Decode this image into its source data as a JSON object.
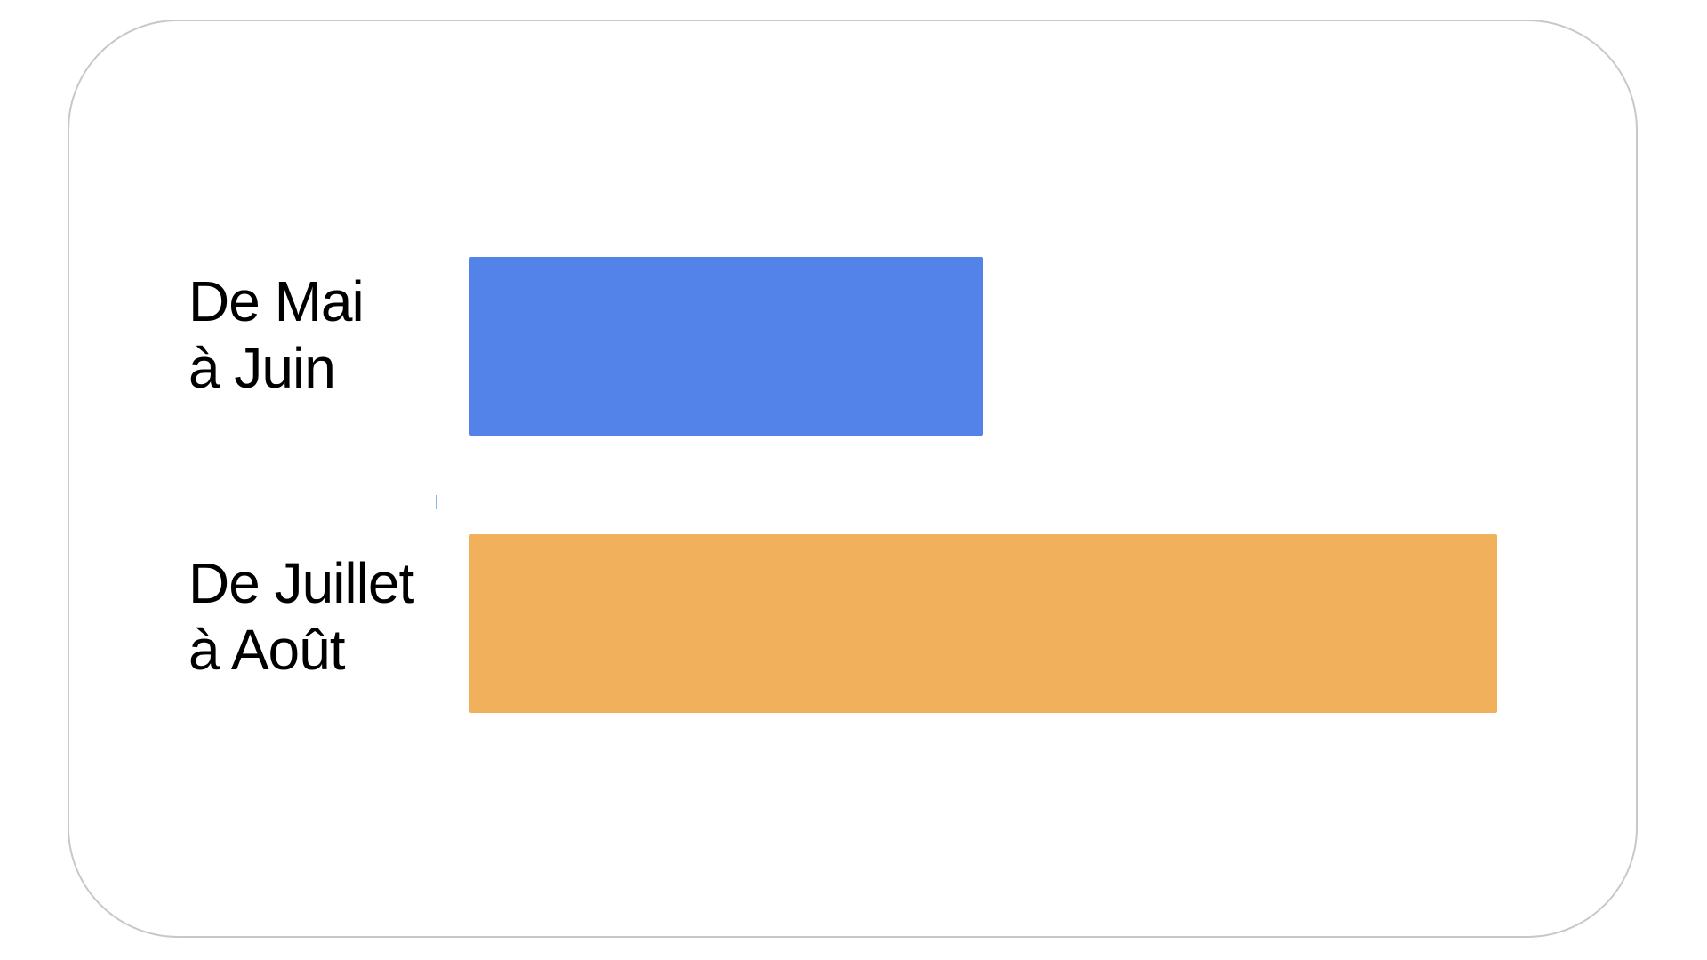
{
  "chart_data": {
    "type": "bar",
    "orientation": "horizontal",
    "categories": [
      [
        "De Mai",
        "à Juin"
      ],
      [
        "De Juillet",
        "à Août"
      ]
    ],
    "values": [
      1,
      2
    ],
    "colors": [
      "#5383E8",
      "#F0B05C"
    ],
    "title": "",
    "xlabel": "",
    "ylabel": "",
    "xlim": [
      0,
      2
    ],
    "grid": false,
    "legend": "none"
  }
}
